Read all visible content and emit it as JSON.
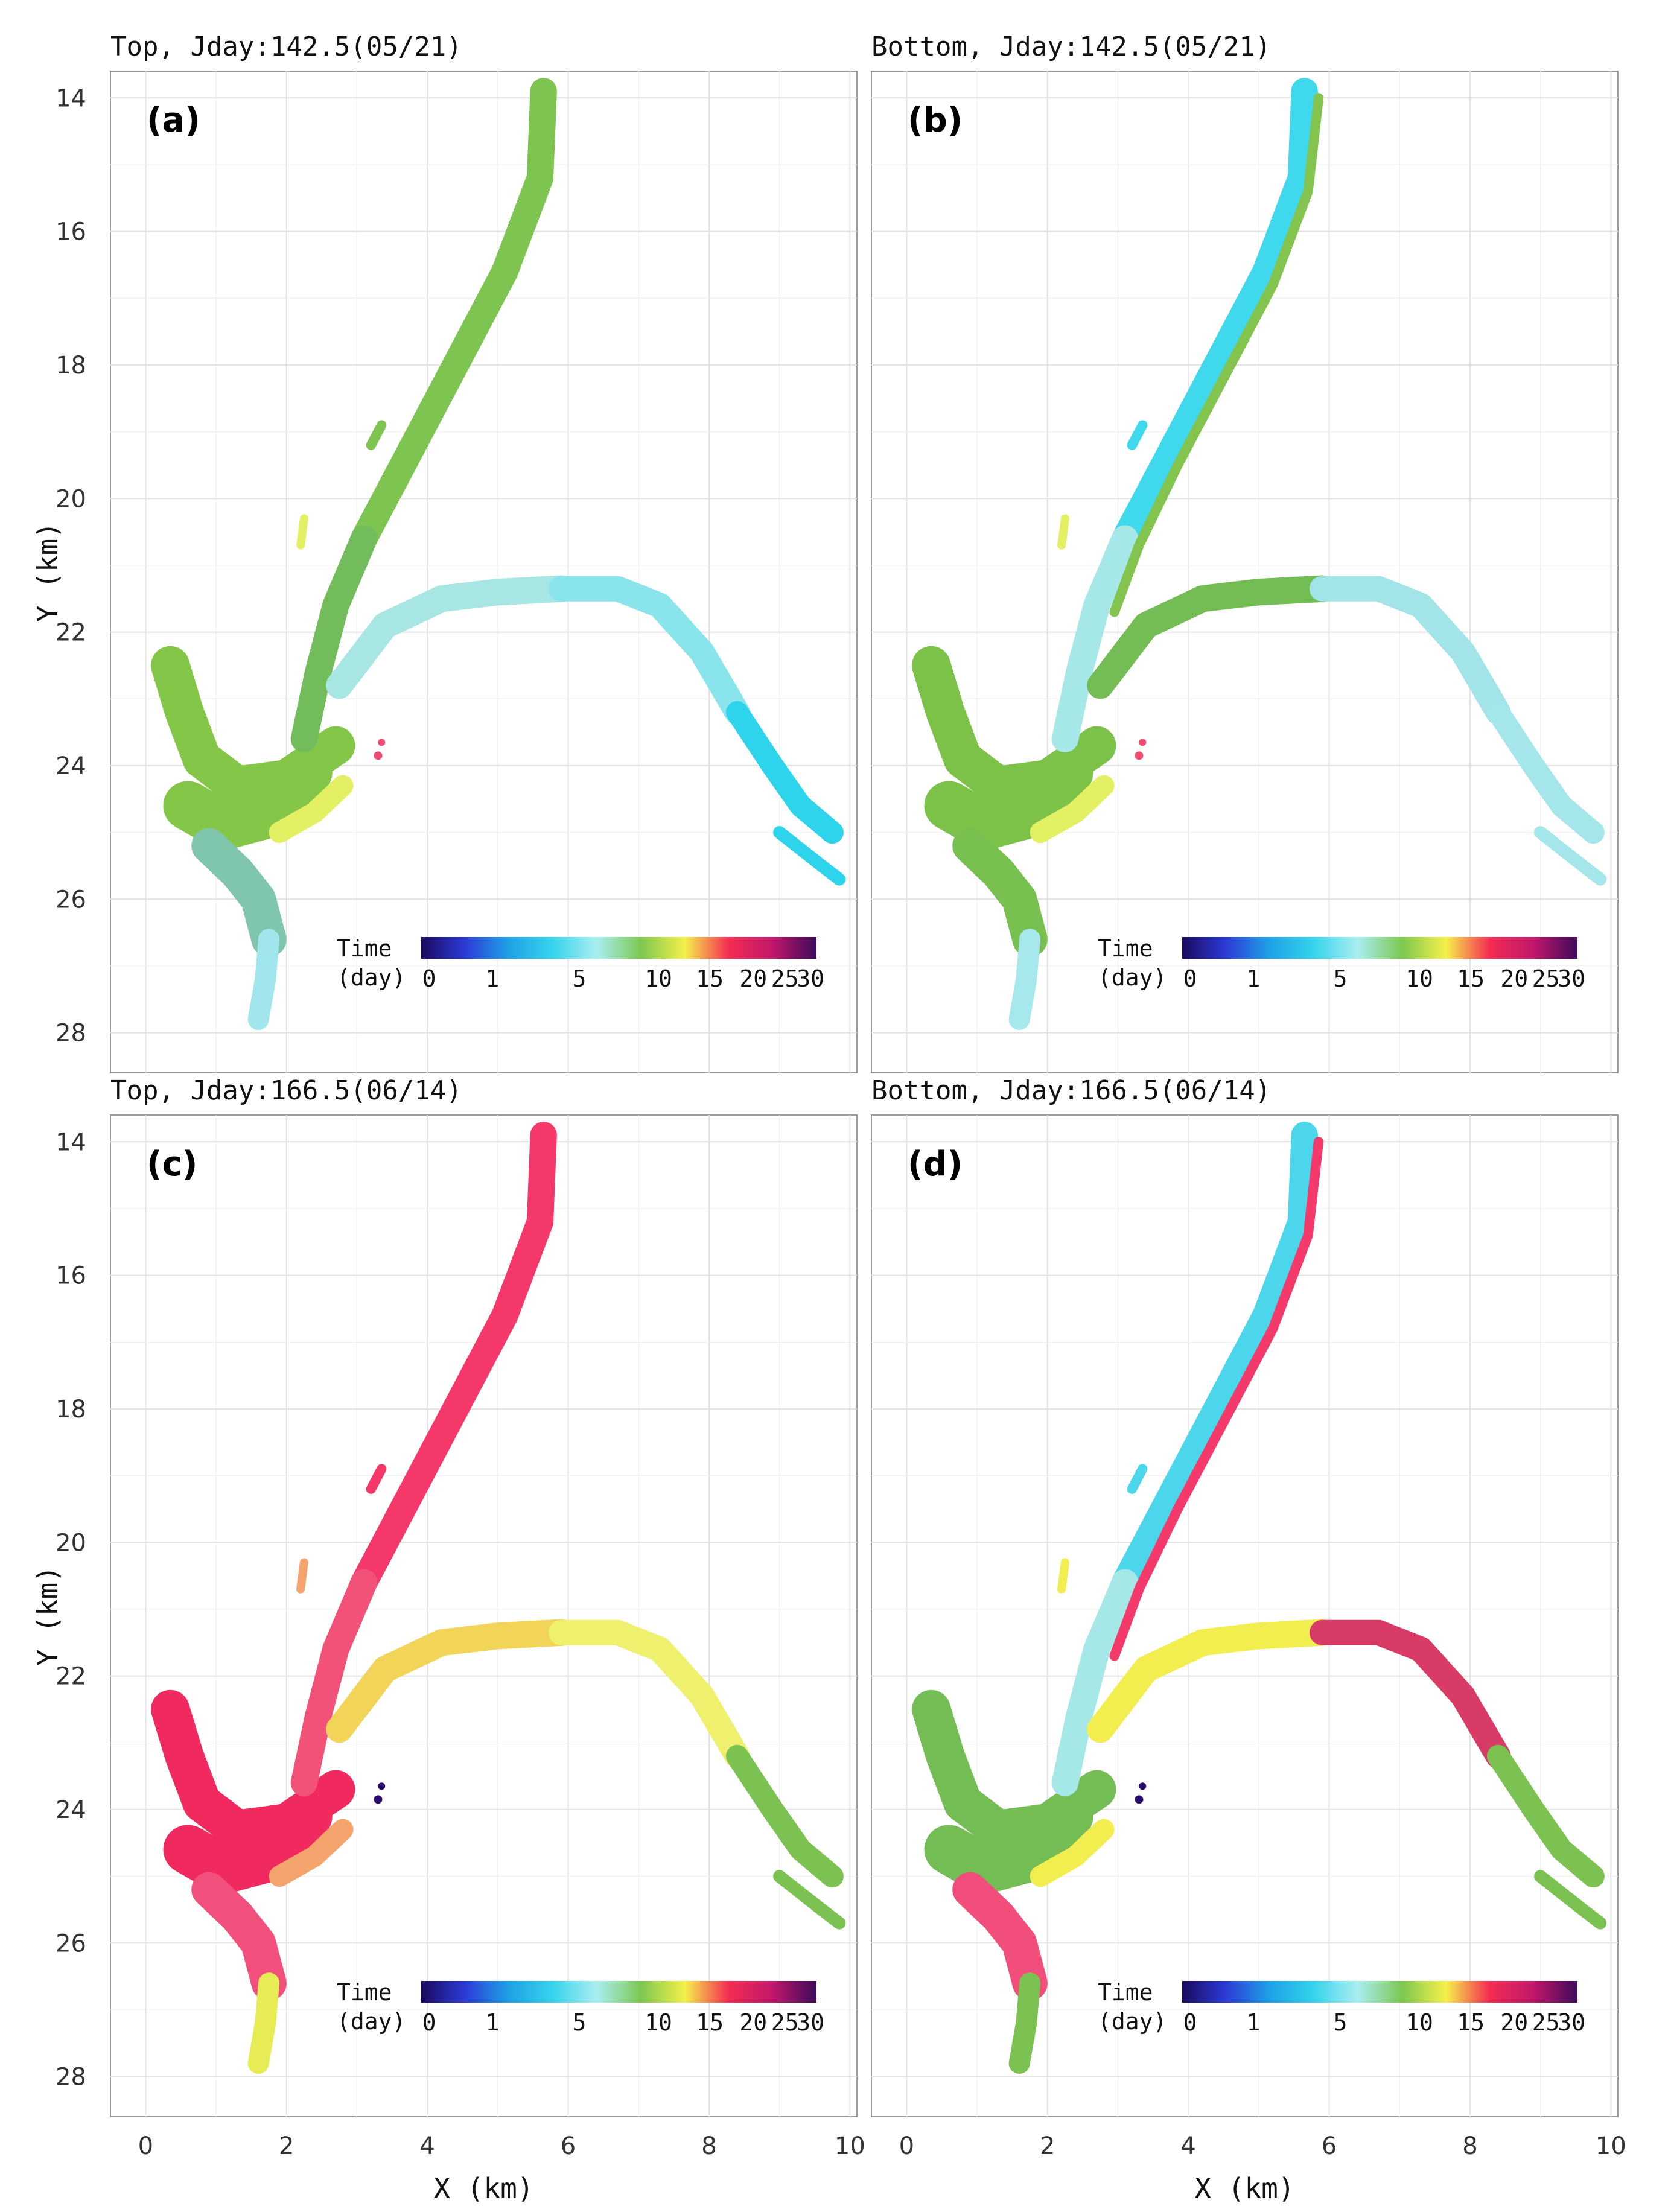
{
  "figure": {
    "x_axis_label": "X (km)",
    "y_axis_label": "Y (km)",
    "x_ticks": [
      "0",
      "2",
      "4",
      "6",
      "8",
      "10"
    ],
    "y_ticks": [
      "14",
      "16",
      "18",
      "20",
      "22",
      "24",
      "26",
      "28"
    ]
  },
  "legend": {
    "title_line1": "Time",
    "title_line2": "(day)",
    "tick_labels": [
      "0",
      "1",
      "5",
      "10",
      "15",
      "20",
      "25",
      "30"
    ],
    "tick_values": [
      0,
      1,
      5,
      10,
      15,
      20,
      25,
      30
    ],
    "colors": [
      "#1a0a5e",
      "#2c3bd6",
      "#1ea2e6",
      "#36d4ec",
      "#a9eef0",
      "#7dc850",
      "#f4f04a",
      "#f42c52",
      "#c0186a",
      "#3c0a5a"
    ]
  },
  "chart_data": [
    {
      "type": "heatmap",
      "panel": "a",
      "tag": "(a)",
      "title": "Top, Jday:142.5(05/21)",
      "layer": "Top",
      "jday": 142.5,
      "date": "05/21",
      "xlim": [
        -0.5,
        10.1
      ],
      "ylim": [
        28.6,
        13.6
      ],
      "colors": {
        "north_channel": "#7dc451",
        "north_lower": "#72bc5c",
        "west_basin": "#84c648",
        "east_channel_west": "#a8e6e4",
        "east_channel_mid": "#8ae4ec",
        "east_channel_end": "#2ed4ec",
        "south_lower": "#80c6ac",
        "south_outlet": "#a0e6ec",
        "bank_patch": "#e4f064",
        "spot": "#f04a70"
      }
    },
    {
      "type": "heatmap",
      "panel": "b",
      "tag": "(b)",
      "title": "Bottom, Jday:142.5(05/21)",
      "layer": "Bottom",
      "jday": 142.5,
      "date": "05/21",
      "xlim": [
        -0.5,
        10.1
      ],
      "ylim": [
        28.6,
        13.6
      ],
      "colors": {
        "north_channel": "#3fd8ec",
        "north_lower": "#a6e8e8",
        "north_bank": "#82c44e",
        "west_basin": "#7cc248",
        "east_channel_west": "#74bc54",
        "east_channel_mid": "#a2e4e8",
        "east_channel_end": "#a4e6ea",
        "south_lower": "#78c050",
        "south_outlet": "#a6e8ec",
        "bank_patch": "#e4f064",
        "spot": "#f04a70"
      }
    },
    {
      "type": "heatmap",
      "panel": "c",
      "tag": "(c)",
      "title": "Top, Jday:166.5(06/14)",
      "layer": "Top",
      "jday": 166.5,
      "date": "06/14",
      "xlim": [
        -0.5,
        10.1
      ],
      "ylim": [
        28.6,
        13.6
      ],
      "colors": {
        "north_channel": "#f4386a",
        "north_lower": "#f25278",
        "west_basin": "#f02a5e",
        "east_channel_west": "#f2d458",
        "east_channel_mid": "#eef06e",
        "east_channel_end": "#7cc252",
        "south_lower": "#f2507c",
        "south_outlet": "#e8ec54",
        "bank_patch": "#f4a46c",
        "spot": "#2a0a6a"
      }
    },
    {
      "type": "heatmap",
      "panel": "d",
      "tag": "(d)",
      "title": "Bottom, Jday:166.5(06/14)",
      "layer": "Bottom",
      "jday": 166.5,
      "date": "06/14",
      "xlim": [
        -0.5,
        10.1
      ],
      "ylim": [
        28.6,
        13.6
      ],
      "colors": {
        "north_channel": "#4cd6ec",
        "north_lower": "#a6e8e8",
        "north_bank": "#f43a6a",
        "west_basin": "#74bc54",
        "east_channel_west": "#f2ee50",
        "east_channel_mid": "#d83c66",
        "east_channel_end": "#7cc252",
        "south_lower": "#f24e7c",
        "south_outlet": "#7cc252",
        "bank_patch": "#f2ee50",
        "spot": "#2a0a6a"
      }
    }
  ]
}
